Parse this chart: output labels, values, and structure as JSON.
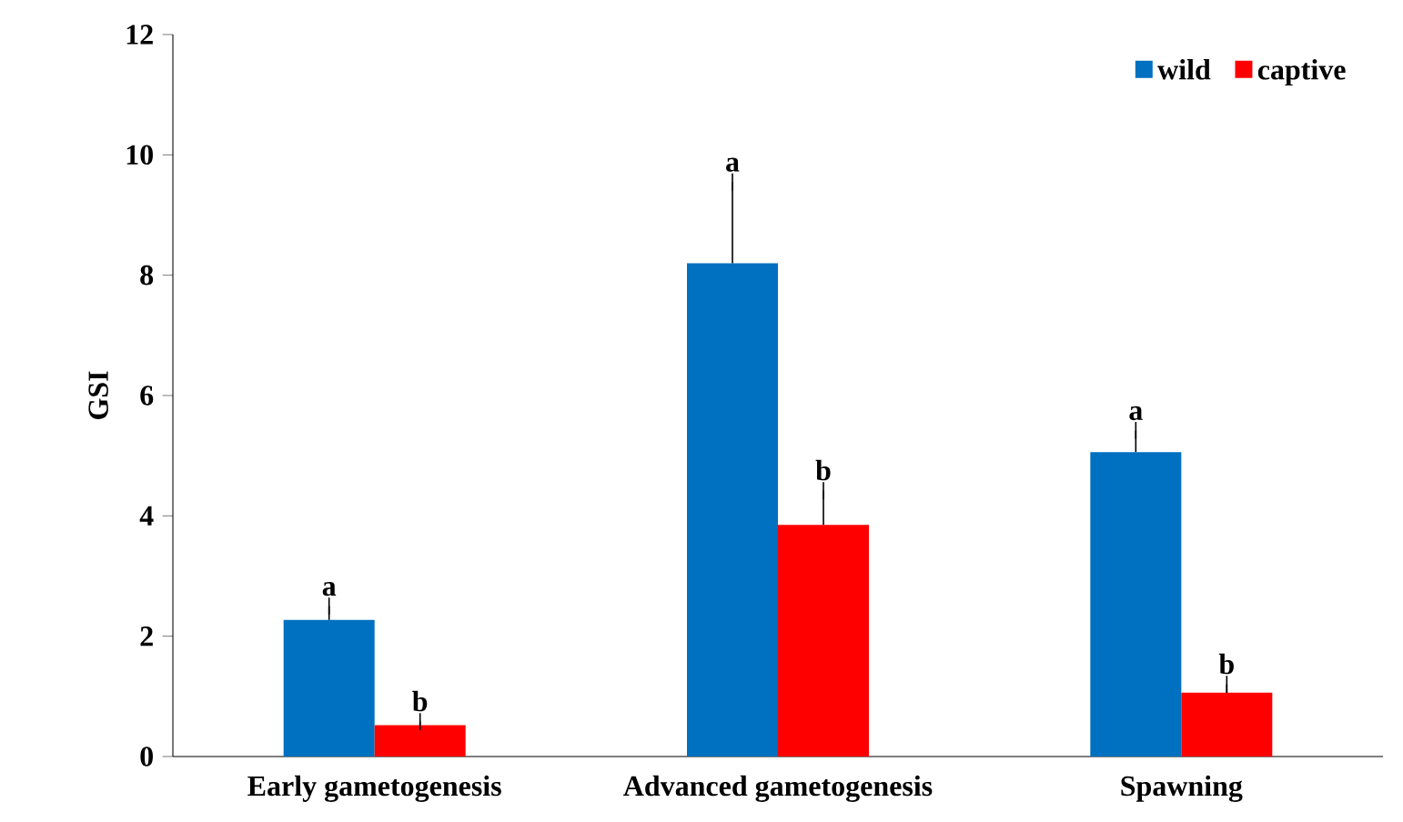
{
  "chart_data": {
    "type": "bar",
    "ylabel": "GSI",
    "categories": [
      "Early gametogenesis",
      "Advanced gametogenesis",
      "Spawning"
    ],
    "series": [
      {
        "name": "wild",
        "color": "#0070c0",
        "values": [
          2.27,
          8.2,
          5.06
        ],
        "errors": [
          [
            2.27,
            2.5
          ],
          [
            8.2,
            9.55
          ],
          [
            5.06,
            5.42
          ]
        ]
      },
      {
        "name": "captive",
        "color": "#ff0000",
        "values": [
          0.52,
          3.85,
          1.06
        ],
        "errors": [
          [
            0.52,
            0.58
          ],
          [
            3.85,
            4.42
          ],
          [
            1.06,
            1.2
          ]
        ]
      }
    ],
    "ylim": [
      0,
      12
    ],
    "yticks": [
      0,
      2,
      4,
      6,
      8,
      10,
      12
    ],
    "legend": "top right",
    "grid": false,
    "annotations": [
      "a",
      "b",
      "a",
      "b",
      "a",
      "b"
    ]
  }
}
